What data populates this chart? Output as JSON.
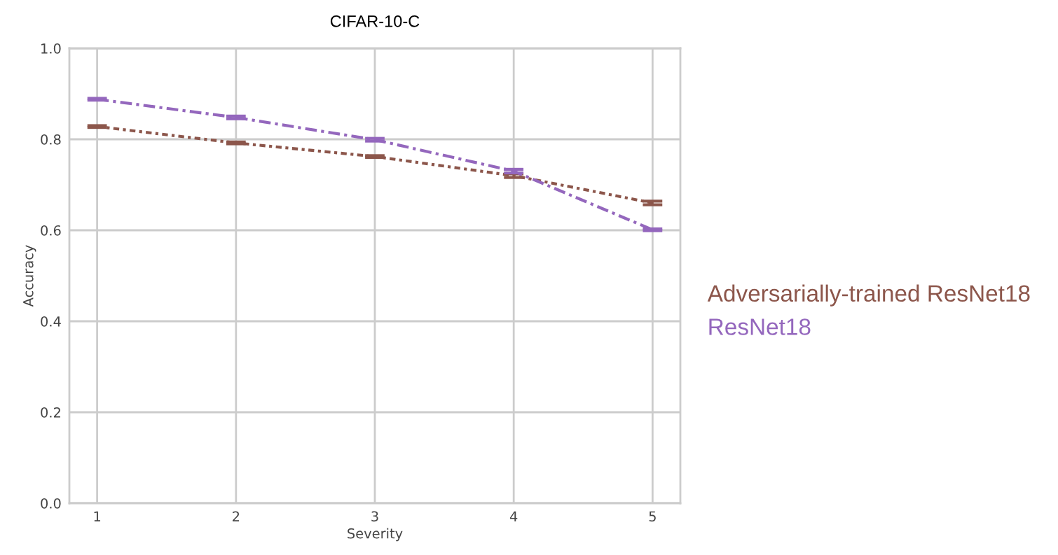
{
  "chart_data": {
    "type": "line",
    "title": "CIFAR-10-C",
    "xlabel": "Severity",
    "ylabel": "Accuracy",
    "x": [
      1,
      2,
      3,
      4,
      5
    ],
    "xlim": [
      0.8,
      5.2
    ],
    "xticks": [
      1,
      2,
      3,
      4,
      5
    ],
    "ylim": [
      0,
      1.0
    ],
    "yticks": [
      {
        "value": 0,
        "label": "0.0"
      },
      0.2,
      0.4,
      0.6,
      0.8,
      {
        "value": 1.0,
        "label": "1.0"
      }
    ],
    "grid": true,
    "legend": "right",
    "marker": "none",
    "series": [
      {
        "name": "Adversarially-trained ResNet18",
        "color": "#8c564b",
        "line_style": "dotted",
        "values": [
          0.828,
          0.792,
          0.762,
          0.72,
          0.66
        ],
        "errors": [
          0.002,
          0.002,
          0.002,
          0.004,
          0.004
        ]
      },
      {
        "name": "ResNet18",
        "color": "#9467bd",
        "line_style": "dashdot",
        "values": [
          0.888,
          0.848,
          0.799,
          0.73,
          0.601
        ],
        "errors": [
          0.002,
          0.003,
          0.003,
          0.004,
          0.002
        ]
      }
    ]
  }
}
